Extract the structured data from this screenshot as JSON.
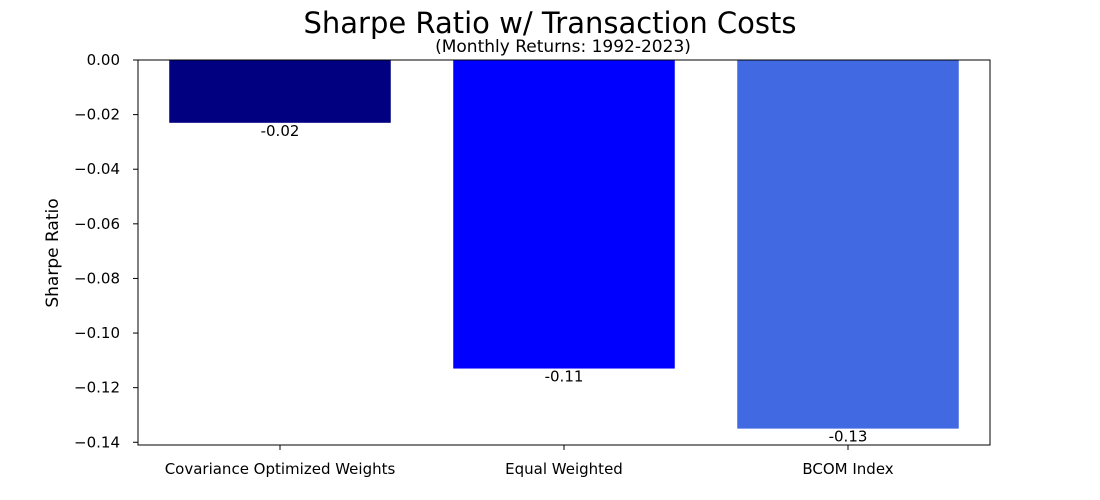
{
  "chart_data": {
    "type": "bar",
    "title": "Sharpe Ratio w/ Transaction Costs",
    "subtitle": "(Monthly Returns: 1992-2023)",
    "xlabel": "",
    "ylabel": "Sharpe Ratio",
    "categories": [
      "Covariance Optimized Weights",
      "Equal Weighted",
      "BCOM Index"
    ],
    "values": [
      -0.023,
      -0.113,
      -0.135
    ],
    "value_labels": [
      "-0.02",
      "-0.11",
      "-0.13"
    ],
    "colors": [
      "#000080",
      "#0000ff",
      "#4169e1"
    ],
    "ylim": [
      -0.141,
      0.0
    ],
    "yticks": [
      0.0,
      -0.02,
      -0.04,
      -0.06,
      -0.08,
      -0.1,
      -0.12,
      -0.14
    ],
    "ytick_labels": [
      "0.00",
      "−0.02",
      "−0.04",
      "−0.06",
      "−0.08",
      "−0.10",
      "−0.12",
      "−0.14"
    ],
    "grid": false,
    "legend": "none"
  }
}
